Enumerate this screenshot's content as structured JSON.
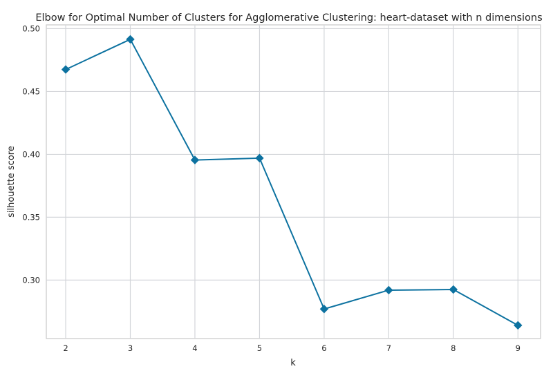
{
  "chart_data": {
    "type": "line",
    "title": "Elbow for Optimal Number of Clusters for Agglomerative Clustering: heart-dataset with n dimensions",
    "xlabel": "k",
    "ylabel": "silhouette score",
    "x": [
      2,
      3,
      4,
      5,
      6,
      7,
      8,
      9
    ],
    "xticks": [
      "2",
      "3",
      "4",
      "5",
      "6",
      "7",
      "8",
      "9"
    ],
    "yticks": [
      "0.30",
      "0.35",
      "0.40",
      "0.45",
      "0.50"
    ],
    "ytick_values": [
      0.3,
      0.35,
      0.4,
      0.45,
      0.5
    ],
    "xlim": [
      1.7,
      9.35
    ],
    "ylim": [
      0.2535,
      0.503
    ],
    "grid": true,
    "marker": "diamond",
    "series": [
      {
        "values": [
          0.4675,
          0.4915,
          0.3955,
          0.397,
          0.277,
          0.292,
          0.2925,
          0.264
        ],
        "color": "#0d72a0"
      }
    ]
  }
}
